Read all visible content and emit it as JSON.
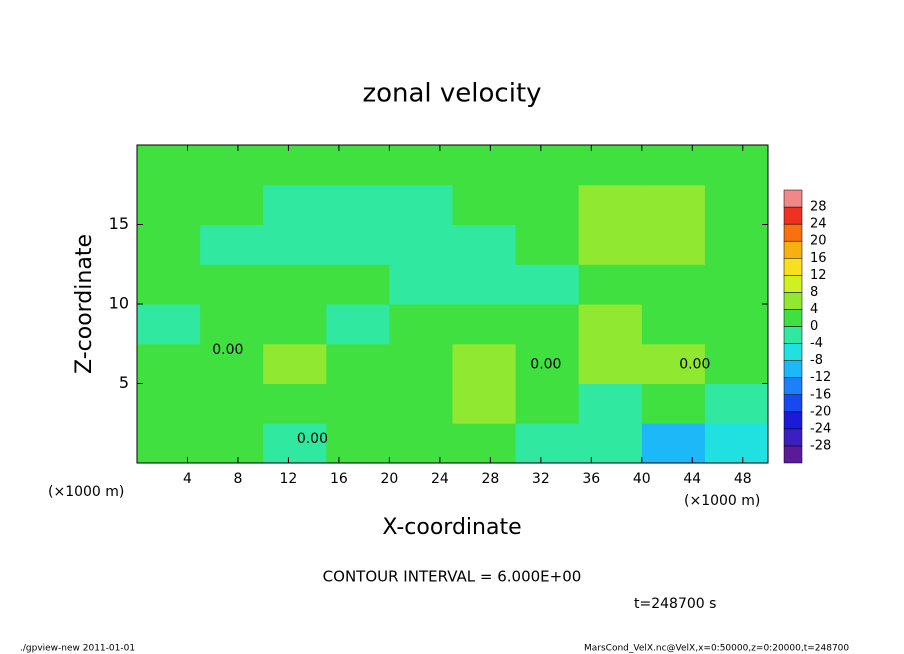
{
  "chart_data": {
    "type": "heatmap",
    "title": "zonal velocity",
    "x_label": "X-coordinate",
    "y_label": "Z-coordinate",
    "x_unit": "(×1000 m)",
    "y_unit": "(×1000 m)",
    "xlim": [
      0,
      50
    ],
    "ylim": [
      0,
      20
    ],
    "xticks": [
      4,
      8,
      12,
      16,
      20,
      24,
      28,
      32,
      36,
      40,
      44,
      48
    ],
    "yticks": [
      5,
      10,
      15
    ],
    "x": [
      2.5,
      7.5,
      12.5,
      17.5,
      22.5,
      27.5,
      32.5,
      37.5,
      42.5,
      47.5
    ],
    "y": [
      1.25,
      3.75,
      6.25,
      8.75,
      11.25,
      13.75,
      16.25,
      18.75
    ],
    "z_values": [
      [
        1,
        0,
        -1,
        0,
        0,
        1,
        -1,
        -2,
        -12,
        -6
      ],
      [
        1,
        3,
        3,
        1,
        1,
        4,
        2,
        -1,
        1,
        -1
      ],
      [
        0,
        2,
        4,
        1,
        3,
        5,
        1,
        4,
        5,
        2
      ],
      [
        -1,
        0,
        0,
        -1,
        1,
        1,
        0,
        4,
        3,
        0
      ],
      [
        0,
        0,
        0,
        0,
        -1,
        -2,
        -1,
        3,
        2,
        0
      ],
      [
        1,
        -1,
        -1,
        -1,
        -2,
        -3,
        0,
        4,
        4,
        0
      ],
      [
        0,
        0,
        -1,
        -1,
        -1,
        0,
        1,
        4,
        5,
        1
      ],
      [
        1,
        1,
        0,
        0,
        0,
        1,
        0,
        3,
        3,
        1
      ]
    ],
    "colorbar": {
      "levels": [
        -28,
        -24,
        -20,
        -16,
        -12,
        -8,
        -4,
        0,
        4,
        8,
        12,
        16,
        20,
        24,
        28
      ],
      "colors": [
        "#5a1a9a",
        "#3a20c0",
        "#1a1ad8",
        "#1848f0",
        "#1c80f8",
        "#1cb8f8",
        "#20e0e0",
        "#30e8a0",
        "#40e040",
        "#90e830",
        "#d0f020",
        "#f8e020",
        "#f8b010",
        "#f87010",
        "#f03020",
        "#f08888"
      ]
    },
    "contour_labels": [
      {
        "text": "0.00",
        "x": 7.2,
        "y": 7.1
      },
      {
        "text": "0.00",
        "x": 13.9,
        "y": 1.5
      },
      {
        "text": "0.00",
        "x": 32.4,
        "y": 6.2
      },
      {
        "text": "0.00",
        "x": 44.2,
        "y": 6.2
      }
    ],
    "contour_interval": "CONTOUR INTERVAL = 6.000E+00",
    "time_label": "t=248700 s",
    "footer_left": "./gpview-new  2011-01-01",
    "footer_right": "MarsCond_VelX.nc@VelX,x=0:50000,z=0:20000,t=248700"
  }
}
